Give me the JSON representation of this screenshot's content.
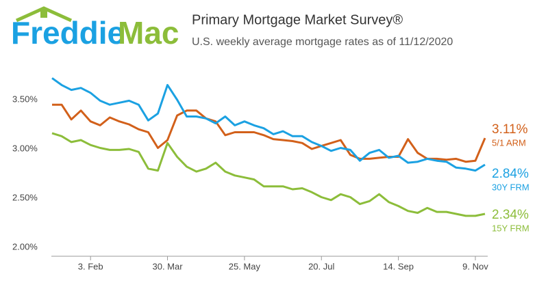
{
  "logo": {
    "left": "Freddie",
    "right": "Mac"
  },
  "chart_data": {
    "type": "line",
    "title": "Primary Mortgage Market Survey®",
    "subtitle": "U.S. weekly average mortgage rates as of 11/12/2020",
    "categories": [
      null,
      null,
      null,
      null,
      "3. Feb",
      null,
      null,
      null,
      null,
      null,
      null,
      null,
      "30. Mar",
      null,
      null,
      null,
      null,
      null,
      null,
      null,
      "25. May",
      null,
      null,
      null,
      null,
      null,
      null,
      null,
      "20. Jul",
      null,
      null,
      null,
      null,
      null,
      null,
      null,
      "14. Sep",
      null,
      null,
      null,
      null,
      null,
      null,
      null,
      "9. Nov",
      null
    ],
    "ylim": [
      1.93,
      3.75
    ],
    "yticks": [
      {
        "value": 2.0,
        "label": "2.00%"
      },
      {
        "value": 2.5,
        "label": "2.50%"
      },
      {
        "value": 3.0,
        "label": "3.00%"
      },
      {
        "value": 3.5,
        "label": "3.50%"
      }
    ],
    "grid": false,
    "series": [
      {
        "name": "5/1 ARM",
        "color": "#d2601a",
        "values": [
          3.45,
          3.45,
          3.3,
          3.39,
          3.28,
          3.24,
          3.32,
          3.28,
          3.25,
          3.2,
          3.17,
          3.01,
          3.09,
          3.34,
          3.39,
          3.39,
          3.31,
          3.28,
          3.14,
          3.17,
          3.17,
          3.17,
          3.14,
          3.1,
          3.09,
          3.08,
          3.06,
          3.0,
          3.03,
          3.06,
          3.09,
          2.94,
          2.9,
          2.9,
          2.91,
          2.92,
          2.92,
          3.1,
          2.96,
          2.9,
          2.9,
          2.89,
          2.9,
          2.87,
          2.88,
          3.11
        ],
        "value_labels": [
          null,
          null,
          null,
          null,
          null,
          null,
          null,
          null,
          null,
          null,
          null,
          null,
          null,
          null,
          null,
          null,
          null,
          null,
          null,
          null,
          null,
          null,
          null,
          null,
          null,
          null,
          null,
          null,
          null,
          null,
          null,
          null,
          null,
          null,
          null,
          null,
          null,
          null,
          null,
          null,
          null,
          null,
          null,
          null,
          null,
          "3.11%"
        ]
      },
      {
        "name": "30Y FRM",
        "color": "#1ba1e2",
        "values": [
          3.72,
          3.65,
          3.6,
          3.62,
          3.57,
          3.49,
          3.45,
          3.47,
          3.49,
          3.45,
          3.29,
          3.36,
          3.65,
          3.5,
          3.33,
          3.33,
          3.31,
          3.26,
          3.33,
          3.24,
          3.28,
          3.24,
          3.21,
          3.15,
          3.18,
          3.13,
          3.13,
          3.07,
          3.03,
          2.98,
          3.01,
          2.99,
          2.88,
          2.96,
          2.99,
          2.91,
          2.93,
          2.86,
          2.87,
          2.9,
          2.88,
          2.87,
          2.81,
          2.8,
          2.78,
          2.84
        ],
        "value_labels": [
          null,
          null,
          null,
          null,
          null,
          null,
          null,
          null,
          null,
          null,
          null,
          null,
          null,
          null,
          null,
          null,
          null,
          null,
          null,
          null,
          null,
          null,
          null,
          null,
          null,
          null,
          null,
          null,
          null,
          null,
          null,
          null,
          null,
          null,
          null,
          null,
          null,
          null,
          null,
          null,
          null,
          null,
          null,
          null,
          null,
          "2.84%"
        ]
      },
      {
        "name": "15Y FRM",
        "color": "#8cbd3a",
        "values": [
          3.16,
          3.13,
          3.07,
          3.09,
          3.04,
          3.01,
          2.99,
          2.99,
          3.0,
          2.97,
          2.8,
          2.78,
          3.06,
          2.92,
          2.82,
          2.77,
          2.8,
          2.86,
          2.77,
          2.73,
          2.71,
          2.69,
          2.62,
          2.62,
          2.62,
          2.59,
          2.6,
          2.56,
          2.51,
          2.48,
          2.54,
          2.51,
          2.44,
          2.47,
          2.54,
          2.46,
          2.42,
          2.37,
          2.35,
          2.4,
          2.36,
          2.36,
          2.34,
          2.32,
          2.32,
          2.34
        ],
        "value_labels": [
          null,
          null,
          null,
          null,
          null,
          null,
          null,
          null,
          null,
          null,
          null,
          null,
          null,
          null,
          null,
          null,
          null,
          null,
          null,
          null,
          null,
          null,
          null,
          null,
          null,
          null,
          null,
          null,
          null,
          null,
          null,
          null,
          null,
          null,
          null,
          null,
          null,
          null,
          null,
          null,
          null,
          null,
          null,
          null,
          null,
          "2.34%"
        ]
      }
    ]
  }
}
